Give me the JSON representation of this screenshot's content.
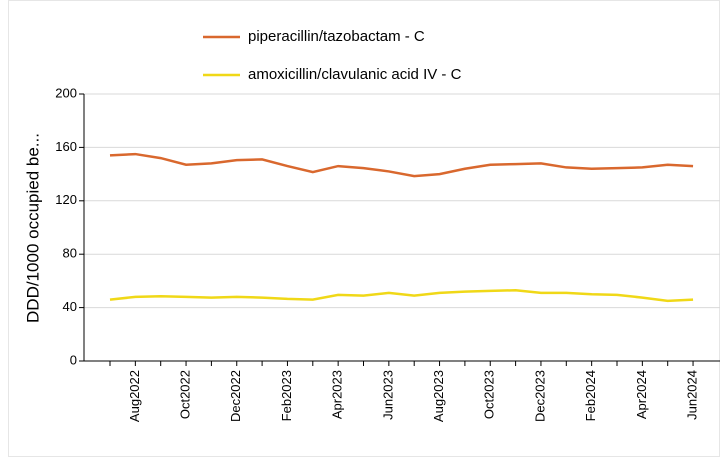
{
  "chart_data": {
    "type": "line",
    "y_label": "DDD/1000  occupied  be...",
    "categories": [
      null,
      "Aug2022",
      null,
      "Oct2022",
      null,
      "Dec2022",
      null,
      "Feb2023",
      null,
      "Apr2023",
      null,
      "Jun2023",
      null,
      "Aug2023",
      null,
      "Oct2023",
      null,
      "Dec2023",
      null,
      "Feb2024",
      null,
      "Apr2024",
      null,
      "Jun2024"
    ],
    "series": [
      {
        "name": "piperacillin/tazobactam - C",
        "color": "#d9682e",
        "values": [
          154,
          155,
          152,
          147,
          148,
          150.5,
          151,
          146,
          141.5,
          146,
          144.5,
          142,
          138.5,
          140,
          144,
          147,
          147.5,
          148,
          145,
          144,
          144.5,
          145,
          147,
          146
        ]
      },
      {
        "name": "amoxicillin/clavulanic acid IV - C",
        "color": "#f0d817",
        "values": [
          46,
          48,
          48.5,
          48,
          47.5,
          48,
          47.5,
          46.5,
          46,
          49.5,
          49,
          51,
          49,
          51,
          52,
          52.5,
          53,
          51,
          51,
          50,
          49.5,
          47.5,
          45,
          46
        ]
      }
    ],
    "ylim": [
      0,
      200
    ],
    "yticks": [
      0,
      40,
      80,
      120,
      160,
      200
    ],
    "grid": true
  }
}
